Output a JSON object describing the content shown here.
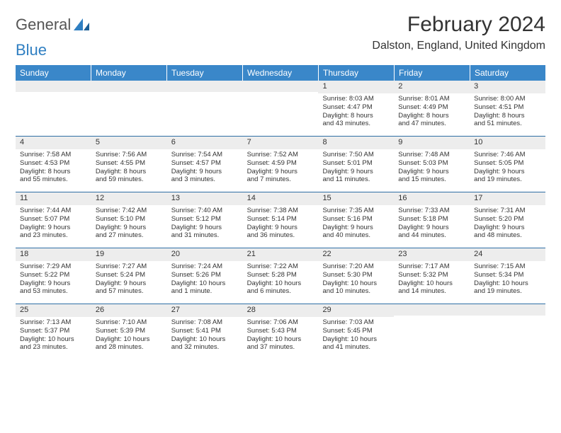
{
  "brand": {
    "word1": "General",
    "word2": "Blue"
  },
  "title": "February 2024",
  "location": "Dalston, England, United Kingdom",
  "colors": {
    "headerBg": "#3a87c9",
    "dayBg": "#ededed",
    "rule": "#2f6fa5"
  },
  "dayNames": [
    "Sunday",
    "Monday",
    "Tuesday",
    "Wednesday",
    "Thursday",
    "Friday",
    "Saturday"
  ],
  "weeks": [
    [
      {
        "n": "",
        "sunrise": "",
        "sunset": "",
        "daylight1": "",
        "daylight2": ""
      },
      {
        "n": "",
        "sunrise": "",
        "sunset": "",
        "daylight1": "",
        "daylight2": ""
      },
      {
        "n": "",
        "sunrise": "",
        "sunset": "",
        "daylight1": "",
        "daylight2": ""
      },
      {
        "n": "",
        "sunrise": "",
        "sunset": "",
        "daylight1": "",
        "daylight2": ""
      },
      {
        "n": "1",
        "sunrise": "Sunrise: 8:03 AM",
        "sunset": "Sunset: 4:47 PM",
        "daylight1": "Daylight: 8 hours",
        "daylight2": "and 43 minutes."
      },
      {
        "n": "2",
        "sunrise": "Sunrise: 8:01 AM",
        "sunset": "Sunset: 4:49 PM",
        "daylight1": "Daylight: 8 hours",
        "daylight2": "and 47 minutes."
      },
      {
        "n": "3",
        "sunrise": "Sunrise: 8:00 AM",
        "sunset": "Sunset: 4:51 PM",
        "daylight1": "Daylight: 8 hours",
        "daylight2": "and 51 minutes."
      }
    ],
    [
      {
        "n": "4",
        "sunrise": "Sunrise: 7:58 AM",
        "sunset": "Sunset: 4:53 PM",
        "daylight1": "Daylight: 8 hours",
        "daylight2": "and 55 minutes."
      },
      {
        "n": "5",
        "sunrise": "Sunrise: 7:56 AM",
        "sunset": "Sunset: 4:55 PM",
        "daylight1": "Daylight: 8 hours",
        "daylight2": "and 59 minutes."
      },
      {
        "n": "6",
        "sunrise": "Sunrise: 7:54 AM",
        "sunset": "Sunset: 4:57 PM",
        "daylight1": "Daylight: 9 hours",
        "daylight2": "and 3 minutes."
      },
      {
        "n": "7",
        "sunrise": "Sunrise: 7:52 AM",
        "sunset": "Sunset: 4:59 PM",
        "daylight1": "Daylight: 9 hours",
        "daylight2": "and 7 minutes."
      },
      {
        "n": "8",
        "sunrise": "Sunrise: 7:50 AM",
        "sunset": "Sunset: 5:01 PM",
        "daylight1": "Daylight: 9 hours",
        "daylight2": "and 11 minutes."
      },
      {
        "n": "9",
        "sunrise": "Sunrise: 7:48 AM",
        "sunset": "Sunset: 5:03 PM",
        "daylight1": "Daylight: 9 hours",
        "daylight2": "and 15 minutes."
      },
      {
        "n": "10",
        "sunrise": "Sunrise: 7:46 AM",
        "sunset": "Sunset: 5:05 PM",
        "daylight1": "Daylight: 9 hours",
        "daylight2": "and 19 minutes."
      }
    ],
    [
      {
        "n": "11",
        "sunrise": "Sunrise: 7:44 AM",
        "sunset": "Sunset: 5:07 PM",
        "daylight1": "Daylight: 9 hours",
        "daylight2": "and 23 minutes."
      },
      {
        "n": "12",
        "sunrise": "Sunrise: 7:42 AM",
        "sunset": "Sunset: 5:10 PM",
        "daylight1": "Daylight: 9 hours",
        "daylight2": "and 27 minutes."
      },
      {
        "n": "13",
        "sunrise": "Sunrise: 7:40 AM",
        "sunset": "Sunset: 5:12 PM",
        "daylight1": "Daylight: 9 hours",
        "daylight2": "and 31 minutes."
      },
      {
        "n": "14",
        "sunrise": "Sunrise: 7:38 AM",
        "sunset": "Sunset: 5:14 PM",
        "daylight1": "Daylight: 9 hours",
        "daylight2": "and 36 minutes."
      },
      {
        "n": "15",
        "sunrise": "Sunrise: 7:35 AM",
        "sunset": "Sunset: 5:16 PM",
        "daylight1": "Daylight: 9 hours",
        "daylight2": "and 40 minutes."
      },
      {
        "n": "16",
        "sunrise": "Sunrise: 7:33 AM",
        "sunset": "Sunset: 5:18 PM",
        "daylight1": "Daylight: 9 hours",
        "daylight2": "and 44 minutes."
      },
      {
        "n": "17",
        "sunrise": "Sunrise: 7:31 AM",
        "sunset": "Sunset: 5:20 PM",
        "daylight1": "Daylight: 9 hours",
        "daylight2": "and 48 minutes."
      }
    ],
    [
      {
        "n": "18",
        "sunrise": "Sunrise: 7:29 AM",
        "sunset": "Sunset: 5:22 PM",
        "daylight1": "Daylight: 9 hours",
        "daylight2": "and 53 minutes."
      },
      {
        "n": "19",
        "sunrise": "Sunrise: 7:27 AM",
        "sunset": "Sunset: 5:24 PM",
        "daylight1": "Daylight: 9 hours",
        "daylight2": "and 57 minutes."
      },
      {
        "n": "20",
        "sunrise": "Sunrise: 7:24 AM",
        "sunset": "Sunset: 5:26 PM",
        "daylight1": "Daylight: 10 hours",
        "daylight2": "and 1 minute."
      },
      {
        "n": "21",
        "sunrise": "Sunrise: 7:22 AM",
        "sunset": "Sunset: 5:28 PM",
        "daylight1": "Daylight: 10 hours",
        "daylight2": "and 6 minutes."
      },
      {
        "n": "22",
        "sunrise": "Sunrise: 7:20 AM",
        "sunset": "Sunset: 5:30 PM",
        "daylight1": "Daylight: 10 hours",
        "daylight2": "and 10 minutes."
      },
      {
        "n": "23",
        "sunrise": "Sunrise: 7:17 AM",
        "sunset": "Sunset: 5:32 PM",
        "daylight1": "Daylight: 10 hours",
        "daylight2": "and 14 minutes."
      },
      {
        "n": "24",
        "sunrise": "Sunrise: 7:15 AM",
        "sunset": "Sunset: 5:34 PM",
        "daylight1": "Daylight: 10 hours",
        "daylight2": "and 19 minutes."
      }
    ],
    [
      {
        "n": "25",
        "sunrise": "Sunrise: 7:13 AM",
        "sunset": "Sunset: 5:37 PM",
        "daylight1": "Daylight: 10 hours",
        "daylight2": "and 23 minutes."
      },
      {
        "n": "26",
        "sunrise": "Sunrise: 7:10 AM",
        "sunset": "Sunset: 5:39 PM",
        "daylight1": "Daylight: 10 hours",
        "daylight2": "and 28 minutes."
      },
      {
        "n": "27",
        "sunrise": "Sunrise: 7:08 AM",
        "sunset": "Sunset: 5:41 PM",
        "daylight1": "Daylight: 10 hours",
        "daylight2": "and 32 minutes."
      },
      {
        "n": "28",
        "sunrise": "Sunrise: 7:06 AM",
        "sunset": "Sunset: 5:43 PM",
        "daylight1": "Daylight: 10 hours",
        "daylight2": "and 37 minutes."
      },
      {
        "n": "29",
        "sunrise": "Sunrise: 7:03 AM",
        "sunset": "Sunset: 5:45 PM",
        "daylight1": "Daylight: 10 hours",
        "daylight2": "and 41 minutes."
      },
      {
        "n": "",
        "sunrise": "",
        "sunset": "",
        "daylight1": "",
        "daylight2": ""
      },
      {
        "n": "",
        "sunrise": "",
        "sunset": "",
        "daylight1": "",
        "daylight2": ""
      }
    ]
  ]
}
